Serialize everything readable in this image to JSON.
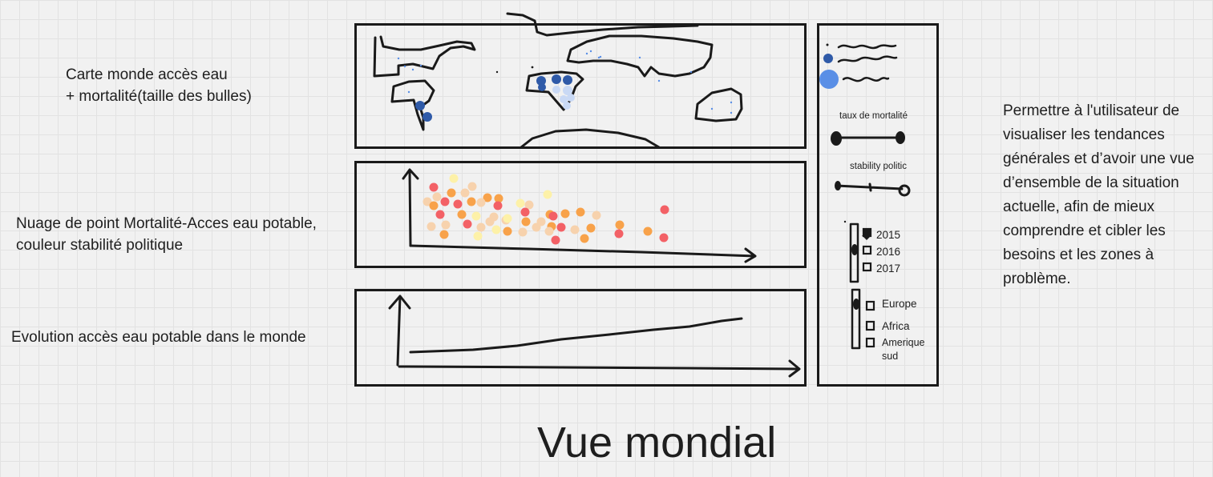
{
  "notes": {
    "map": "Carte monde accès eau\n+ mortalité(taille des bulles)",
    "scatter": "Nuage de point Mortalité-Acces eau potable,\ncouleur stabilité politique",
    "evolution": "Evolution accès eau potable dans le monde",
    "description": "Permettre à l'utilisateur de visualiser les tendances générales et d’avoir une vue d’ensemble de la situation actuelle, afin de mieux comprendre et cibler les besoins et les zones à problème."
  },
  "title": "Vue mondial",
  "sidebar": {
    "mortality_label": "taux de mortalité",
    "stability_label": "stability politic",
    "years": [
      "2015",
      "2016",
      "2017"
    ],
    "regions": [
      "Europe",
      "Africa",
      "Amerique sud"
    ]
  },
  "colors": {
    "stroke": "#1a1a1a",
    "bubble_dark": "#2f5aa8",
    "bubble_mid": "#5a8fe6",
    "bubble_light": "#c9d9f5",
    "scatter_palette": [
      "#f36166",
      "#f8a24a",
      "#f7d2ad",
      "#fdf1a8"
    ]
  }
}
